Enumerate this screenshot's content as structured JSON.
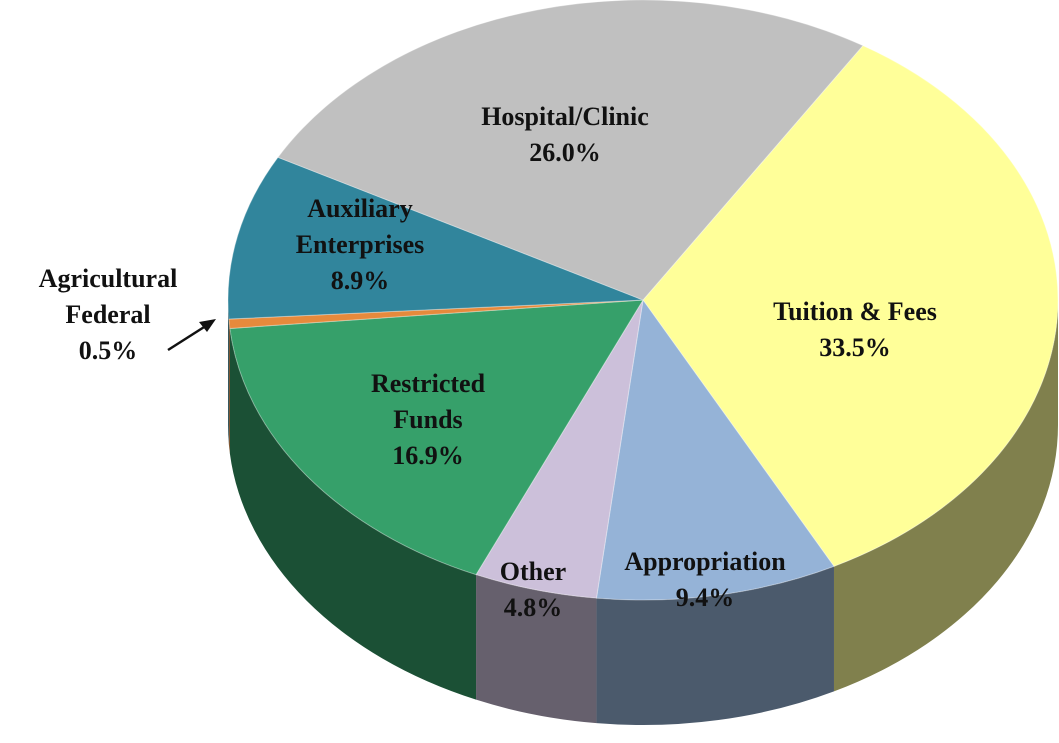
{
  "chart_data": {
    "type": "pie",
    "categories": [
      "Tuition & Fees",
      "Appropriation",
      "Other",
      "Restricted Funds",
      "Agricultural Federal",
      "Auxiliary Enterprises",
      "Hospital/Clinic"
    ],
    "values": [
      33.5,
      9.4,
      4.8,
      16.9,
      0.5,
      8.9,
      26.0
    ],
    "value_labels": [
      "33.5%",
      "9.4%",
      "4.8%",
      "16.9%",
      "0.5%",
      "8.9%",
      "26.0%"
    ],
    "colors": [
      "#ffff99",
      "#95b3d7",
      "#ccc0da",
      "#36a06a",
      "#e68a3c",
      "#31859c",
      "#c0c0c0"
    ]
  }
}
